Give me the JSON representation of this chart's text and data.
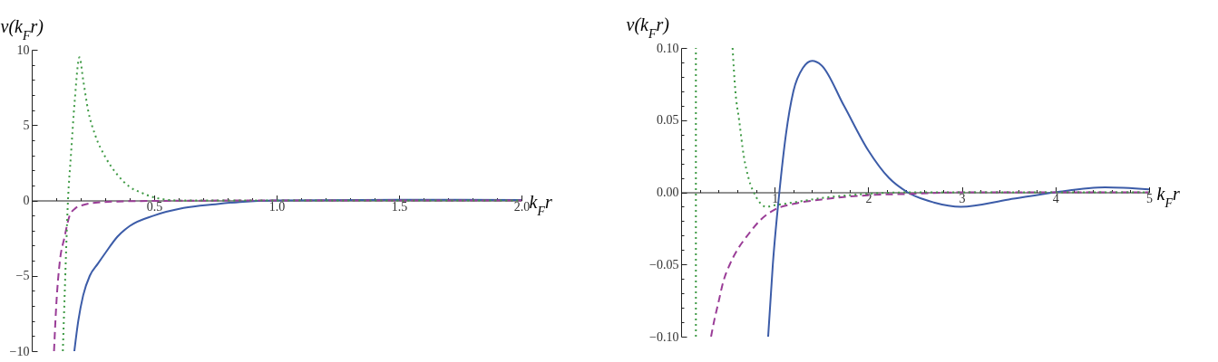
{
  "chart_data": [
    {
      "type": "line",
      "xlabel": "k$_{F}$r",
      "ylabel": "v(k$_{F}$r)",
      "xlim": [
        0,
        2
      ],
      "ylim": [
        -10,
        10
      ],
      "xticks": [
        {
          "value": 0.1,
          "label": null
        },
        {
          "value": 0.2,
          "label": null
        },
        {
          "value": 0.3,
          "label": null
        },
        {
          "value": 0.4,
          "label": null
        },
        {
          "value": 0.5,
          "label": "0.5"
        },
        {
          "value": 0.6,
          "label": null
        },
        {
          "value": 0.7,
          "label": null
        },
        {
          "value": 0.8,
          "label": null
        },
        {
          "value": 0.9,
          "label": null
        },
        {
          "value": 1,
          "label": "1.0"
        },
        {
          "value": 1.1,
          "label": null
        },
        {
          "value": 1.2,
          "label": null
        },
        {
          "value": 1.3,
          "label": null
        },
        {
          "value": 1.4,
          "label": null
        },
        {
          "value": 1.5,
          "label": "1.5"
        },
        {
          "value": 1.6,
          "label": null
        },
        {
          "value": 1.7,
          "label": null
        },
        {
          "value": 1.8,
          "label": null
        },
        {
          "value": 1.9,
          "label": null
        },
        {
          "value": 2,
          "label": "2.0"
        }
      ],
      "yticks": [
        {
          "value": -10,
          "label": "−10"
        },
        {
          "value": -9,
          "label": null
        },
        {
          "value": -8,
          "label": null
        },
        {
          "value": -7,
          "label": null
        },
        {
          "value": -6,
          "label": null
        },
        {
          "value": -5,
          "label": "−5"
        },
        {
          "value": -4,
          "label": null
        },
        {
          "value": -3,
          "label": null
        },
        {
          "value": -2,
          "label": null
        },
        {
          "value": -1,
          "label": null
        },
        {
          "value": 0,
          "label": "0"
        },
        {
          "value": 1,
          "label": null
        },
        {
          "value": 2,
          "label": null
        },
        {
          "value": 3,
          "label": null
        },
        {
          "value": 4,
          "label": null
        },
        {
          "value": 5,
          "label": "5"
        },
        {
          "value": 6,
          "label": null
        },
        {
          "value": 7,
          "label": null
        },
        {
          "value": 8,
          "label": null
        },
        {
          "value": 9,
          "label": null
        },
        {
          "value": 10,
          "label": "10"
        }
      ],
      "series": [
        {
          "color": "#3c5ca8",
          "line_style": "solid",
          "x": [
            0.174,
            0.19,
            0.21,
            0.237,
            0.27,
            0.3,
            0.35,
            0.4,
            0.5,
            0.62,
            0.75,
            0.85,
            1.0,
            1.5,
            2.0
          ],
          "values": [
            -10,
            -8,
            -6.3,
            -5,
            -4.2,
            -3.5,
            -2.4,
            -1.7,
            -1.0,
            -0.5,
            -0.25,
            -0.1,
            0,
            0.05,
            0.03
          ]
        },
        {
          "color": "#9a3d97",
          "line_style": "dashed",
          "x": [
            0.091,
            0.1,
            0.115,
            0.133,
            0.155,
            0.18,
            0.21,
            0.26,
            0.35,
            0.5,
            1.0,
            1.5,
            2.0
          ],
          "values": [
            -10,
            -7,
            -4,
            -2.5,
            -1,
            -0.5,
            -0.3,
            -0.15,
            -0.07,
            -0.03,
            0,
            0,
            0
          ]
        },
        {
          "color": "#3f9a45",
          "line_style": "dotted",
          "x": [
            0.127,
            0.135,
            0.148,
            0.16,
            0.175,
            0.195,
            0.21,
            0.23,
            0.26,
            0.3,
            0.35,
            0.4,
            0.45,
            0.5,
            0.6,
            0.8,
            1.0,
            1.5,
            2.0
          ],
          "values": [
            -10,
            -6,
            0,
            3,
            6.5,
            9.5,
            8,
            6,
            4.3,
            2.9,
            1.7,
            0.9,
            0.5,
            0.2,
            0,
            0,
            0,
            0,
            0
          ]
        }
      ]
    },
    {
      "type": "line",
      "xlabel": "k$_{F}$r",
      "ylabel": "v(k$_{F}$r)",
      "xlim": [
        0,
        5
      ],
      "ylim": [
        -0.1,
        0.1
      ],
      "xticks": [
        {
          "value": 0.2,
          "label": null
        },
        {
          "value": 0.4,
          "label": null
        },
        {
          "value": 0.6,
          "label": null
        },
        {
          "value": 0.8,
          "label": null
        },
        1,
        {
          "value": 1.2,
          "label": null
        },
        {
          "value": 1.4,
          "label": null
        },
        {
          "value": 1.6,
          "label": null
        },
        {
          "value": 1.8,
          "label": null
        },
        2,
        {
          "value": 2.2,
          "label": null
        },
        {
          "value": 2.4,
          "label": null
        },
        {
          "value": 2.6,
          "label": null
        },
        {
          "value": 2.8,
          "label": null
        },
        3,
        {
          "value": 3.2,
          "label": null
        },
        {
          "value": 3.4,
          "label": null
        },
        {
          "value": 3.6,
          "label": null
        },
        {
          "value": 3.8,
          "label": null
        },
        4,
        {
          "value": 4.2,
          "label": null
        },
        {
          "value": 4.4,
          "label": null
        },
        {
          "value": 4.6,
          "label": null
        },
        {
          "value": 4.8,
          "label": null
        },
        5
      ],
      "yticks": [
        {
          "value": -0.1,
          "label": "−0.10"
        },
        {
          "value": -0.09,
          "label": null
        },
        {
          "value": -0.08,
          "label": null
        },
        {
          "value": -0.07,
          "label": null
        },
        {
          "value": -0.06,
          "label": null
        },
        {
          "value": -0.05,
          "label": "−0.05"
        },
        {
          "value": -0.04,
          "label": null
        },
        {
          "value": -0.03,
          "label": null
        },
        {
          "value": -0.02,
          "label": null
        },
        {
          "value": -0.01,
          "label": null
        },
        {
          "value": 0,
          "label": "0.00"
        },
        {
          "value": 0.01,
          "label": null
        },
        {
          "value": 0.02,
          "label": null
        },
        {
          "value": 0.03,
          "label": null
        },
        {
          "value": 0.04,
          "label": null
        },
        {
          "value": 0.05,
          "label": "0.05"
        },
        {
          "value": 0.06,
          "label": null
        },
        {
          "value": 0.07,
          "label": null
        },
        {
          "value": 0.08,
          "label": null
        },
        {
          "value": 0.09,
          "label": null
        },
        {
          "value": 0.1,
          "label": "0.10"
        }
      ],
      "series": [
        {
          "color": "#3c5ca8",
          "line_style": "solid",
          "x": [
            0.93,
            0.98,
            1.05,
            1.12,
            1.2,
            1.3,
            1.4,
            1.5,
            1.74,
            2.0,
            2.22,
            2.42,
            2.7,
            2.99,
            3.5,
            4.0,
            4.53,
            5.0
          ],
          "values": [
            -0.1,
            -0.05,
            0,
            0.04,
            0.07,
            0.086,
            0.091,
            0.088,
            0.06,
            0.029,
            0.01,
            0,
            -0.007,
            -0.01,
            -0.005,
            0,
            0.0034,
            0.002
          ]
        },
        {
          "color": "#9a3d97",
          "line_style": "dashed",
          "x": [
            0.32,
            0.36,
            0.4,
            0.45,
            0.52,
            0.6,
            0.72,
            0.85,
            1.0,
            1.2,
            1.5,
            2.0,
            2.5,
            3,
            4,
            5
          ],
          "values": [
            -0.1,
            -0.087,
            -0.076,
            -0.062,
            -0.05,
            -0.04,
            -0.029,
            -0.019,
            -0.012,
            -0.008,
            -0.005,
            -0.002,
            -0.001,
            0,
            0,
            0
          ]
        },
        {
          "color": "#3f9a45",
          "line_style": "dotted",
          "x": [
            0.158,
            0.158,
            0.3,
            0.55,
            0.58,
            0.62,
            0.67,
            0.72,
            0.8,
            0.91,
            1.0,
            1.2,
            1.5,
            2.0,
            2.5,
            3,
            4,
            5
          ],
          "values": [
            -0.1,
            0.1,
            null,
            0.1,
            0.07,
            0.05,
            0.025,
            0.01,
            -0.003,
            -0.01,
            -0.009,
            -0.007,
            -0.004,
            -0.001,
            0,
            0,
            0,
            0
          ]
        }
      ]
    }
  ]
}
